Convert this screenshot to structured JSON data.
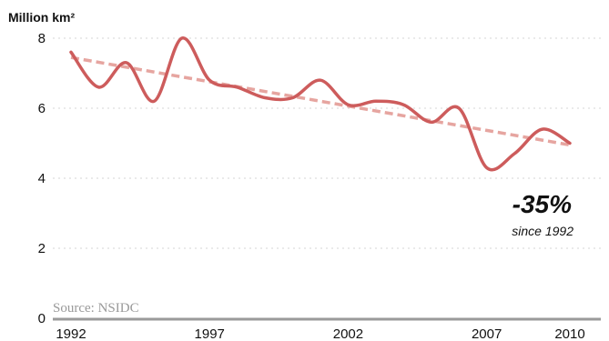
{
  "chart_data": {
    "type": "line",
    "title": "",
    "ylabel": "Million km²",
    "xlabel": "",
    "ylim": [
      0,
      8
    ],
    "xlim": [
      1992,
      2010
    ],
    "y_ticks": [
      0,
      2,
      4,
      6,
      8
    ],
    "x_ticks": [
      1992,
      1997,
      2002,
      2007,
      2010
    ],
    "grid": true,
    "series": [
      {
        "x": [
          1992,
          1993,
          1994,
          1995,
          1996,
          1997,
          1998,
          1999,
          2000,
          2001,
          2002,
          2003,
          2004,
          2005,
          2006,
          2007,
          2008,
          2009,
          2010
        ],
        "values": [
          7.6,
          6.6,
          7.3,
          6.2,
          8.0,
          6.8,
          6.6,
          6.3,
          6.3,
          6.8,
          6.1,
          6.2,
          6.1,
          5.6,
          6.0,
          4.3,
          4.7,
          5.4,
          5.0
        ]
      },
      {
        "style": "dashed trend",
        "x": [
          1992,
          2010
        ],
        "values": [
          7.45,
          4.95
        ]
      }
    ],
    "annotations": {
      "change": "-35%",
      "since": "since 1992",
      "source": "Source: NSIDC"
    },
    "colors": {
      "line": "#cd5c5c",
      "trend": "#e6a5a0",
      "grid": "#d6d6d6",
      "baseline": "#9a9a9a",
      "text": "#111111",
      "source": "#999999"
    }
  }
}
